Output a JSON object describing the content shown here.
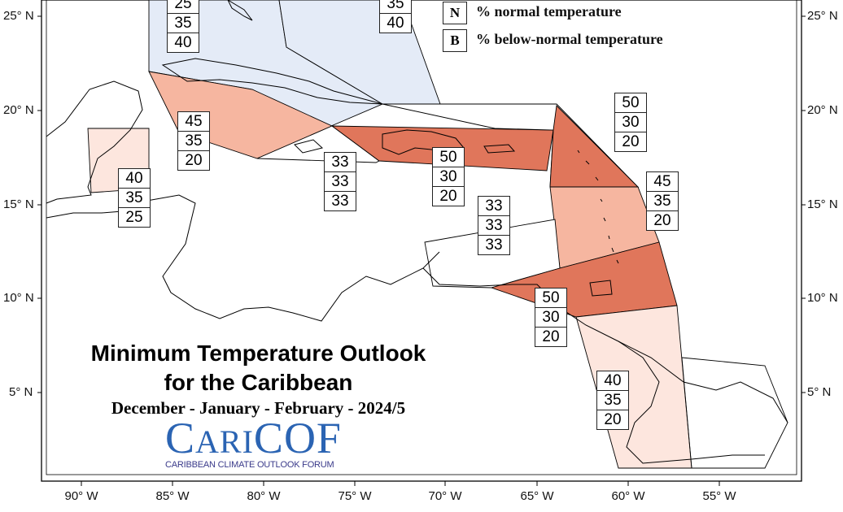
{
  "title": {
    "line1": "Minimum Temperature Outlook",
    "line2": "for the Caribbean",
    "line3": "December - January - February - 2024/5"
  },
  "logo": {
    "main_prefix": "C",
    "main_mid": "ARI",
    "main_suffix": "COF",
    "subtitle": "CARIBBEAN CLIMATE OUTLOOK FORUM"
  },
  "legend": {
    "items": [
      {
        "key": "N",
        "text": "% normal temperature"
      },
      {
        "key": "B",
        "text": "% below-normal temperature"
      }
    ]
  },
  "axes": {
    "lat_ticks": [
      "25° N",
      "20° N",
      "15° N",
      "10° N",
      "5° N"
    ],
    "lon_ticks": [
      "90° W",
      "85° W",
      "80° W",
      "75° W",
      "70° W",
      "65° W",
      "60° W",
      "55° W"
    ]
  },
  "colors": {
    "cool_blue": "#e4ebf7",
    "light_orange": "#fde6de",
    "medium_orange": "#f6b6a0",
    "dark_orange": "#e0765b"
  },
  "regions": [
    {
      "name": "Bahamas (west)",
      "probs": [
        "25",
        "35",
        "40"
      ],
      "color": "cool_blue"
    },
    {
      "name": "Bahamas (east)",
      "probs": [
        "",
        "35",
        "40"
      ],
      "color": "cool_blue"
    },
    {
      "name": "Cuba",
      "probs": [
        "45",
        "35",
        "20"
      ],
      "color": "medium_orange"
    },
    {
      "name": "Belize",
      "probs": [
        "40",
        "35",
        "25"
      ],
      "color": "light_orange"
    },
    {
      "name": "Jamaica / central Caribbean Sea",
      "probs": [
        "33",
        "33",
        "33"
      ],
      "color": "none"
    },
    {
      "name": "Hispaniola / Puerto Rico",
      "probs": [
        "50",
        "30",
        "20"
      ],
      "color": "dark_orange"
    },
    {
      "name": "Leeward Islands",
      "probs": [
        "50",
        "30",
        "20"
      ],
      "color": "dark_orange"
    },
    {
      "name": "Windward Islands",
      "probs": [
        "45",
        "35",
        "20"
      ],
      "color": "medium_orange"
    },
    {
      "name": "ABC Islands",
      "probs": [
        "33",
        "33",
        "33"
      ],
      "color": "none"
    },
    {
      "name": "Trinidad and Tobago",
      "probs": [
        "50",
        "30",
        "20"
      ],
      "color": "dark_orange"
    },
    {
      "name": "Guianas",
      "probs": [
        "40",
        "35",
        "20"
      ],
      "color": "light_orange"
    }
  ]
}
